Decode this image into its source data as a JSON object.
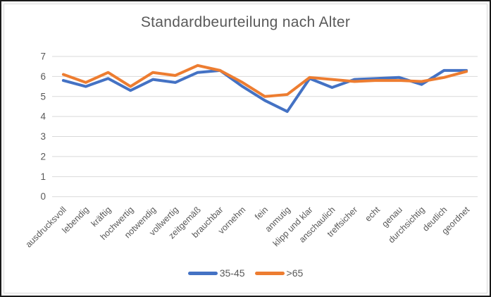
{
  "chart_data": {
    "type": "line",
    "title": "Standardbeurteilung nach Alter",
    "categories": [
      "ausdrucksvoll",
      "lebendig",
      "kräftig",
      "hochwertig",
      "notwendig",
      "vollwertig",
      "zeitgemäß",
      "brauchbar",
      "vornehm",
      "fein",
      "anmutig",
      "klipp und klar",
      "anschaulich",
      "treffsicher",
      "echt",
      "genau",
      "durchsichtig",
      "deutlich",
      "geordnet"
    ],
    "series": [
      {
        "name": "35-45",
        "color": "#4472C4",
        "values": [
          5.8,
          5.5,
          5.9,
          5.3,
          5.85,
          5.7,
          6.2,
          6.3,
          5.5,
          4.8,
          4.25,
          5.9,
          5.45,
          5.85,
          5.9,
          5.95,
          5.6,
          6.3,
          6.3
        ]
      },
      {
        "name": ">65",
        "color": "#ED7D31",
        "values": [
          6.1,
          5.7,
          6.2,
          5.5,
          6.2,
          6.05,
          6.55,
          6.3,
          5.7,
          5.0,
          5.1,
          5.95,
          5.85,
          5.75,
          5.8,
          5.8,
          5.75,
          5.95,
          6.25
        ]
      }
    ],
    "xlabel": "",
    "ylabel": "",
    "ylim": [
      0,
      7
    ],
    "yticks": [
      0,
      1,
      2,
      3,
      4,
      5,
      6,
      7
    ],
    "grid": true,
    "legend_position": "bottom",
    "colors": {
      "gridline": "#d9d9d9",
      "axis_text": "#595959",
      "title_text": "#595959"
    }
  }
}
